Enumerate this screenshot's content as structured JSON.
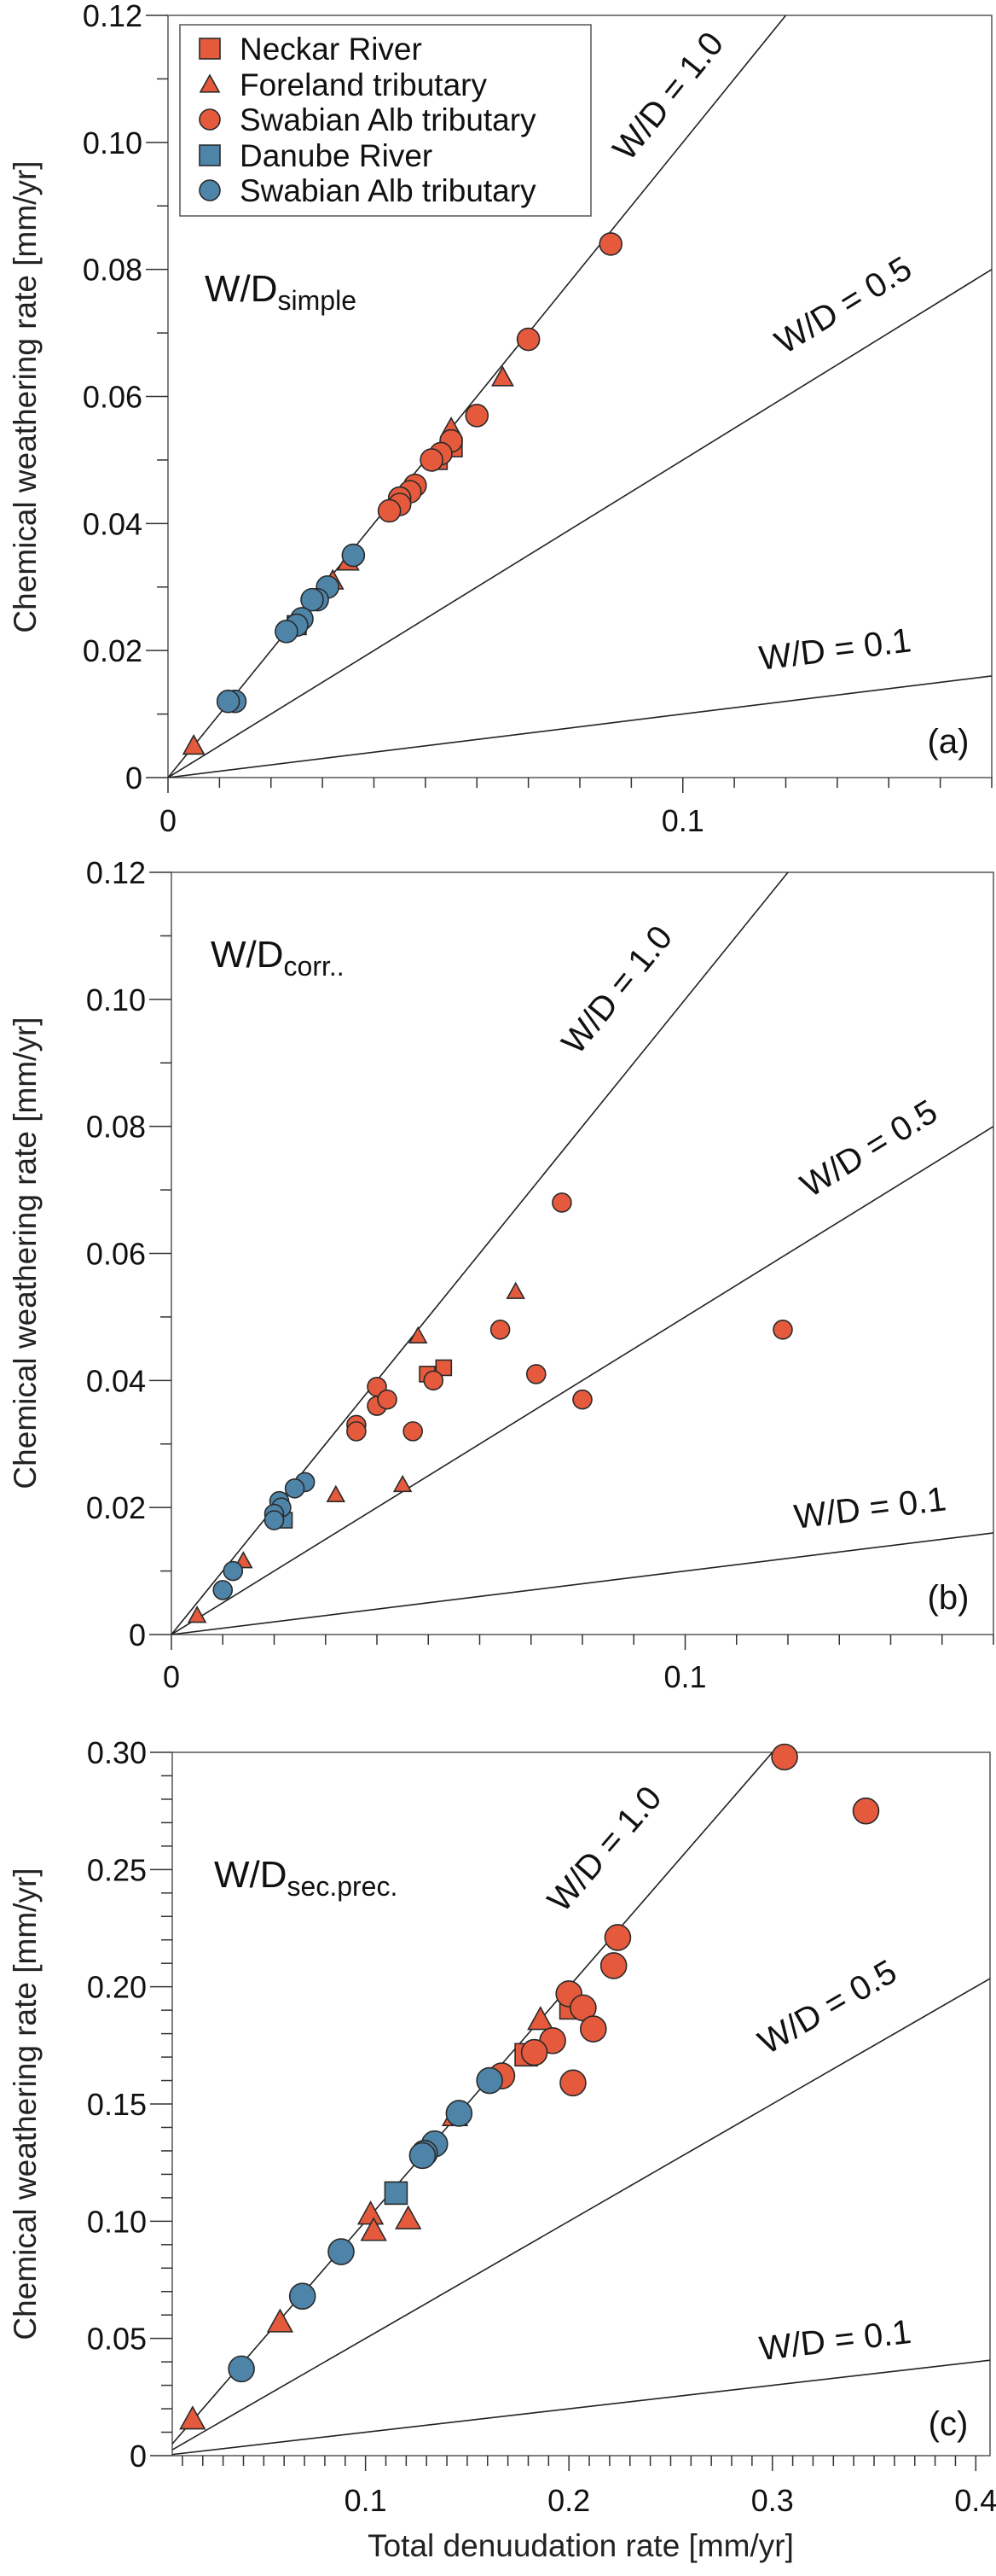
{
  "colors": {
    "orange": "#e55a3c",
    "blue": "#4e84a8",
    "stroke": "#2a2a2a"
  },
  "legend": {
    "placement": "top-left (panel a)",
    "entries": [
      {
        "label": "Neckar River",
        "marker": "square",
        "color": "#e55a3c"
      },
      {
        "label": "Foreland tributary",
        "marker": "triangle",
        "color": "#e55a3c"
      },
      {
        "label": "Swabian Alb tributary",
        "marker": "circle",
        "color": "#e55a3c"
      },
      {
        "label": "Danube River",
        "marker": "square",
        "color": "#4e84a8"
      },
      {
        "label": "Swabian Alb tributary",
        "marker": "circle",
        "color": "#4e84a8"
      }
    ]
  },
  "chart_data": [
    {
      "type": "scatter",
      "panel": "(a)",
      "ratio_label": "W/D",
      "ratio_sub": "simple",
      "ylabel": "Chemical weathering rate [mm/yr]",
      "xlabel": "",
      "xlim": [
        0,
        0.16
      ],
      "ylim": [
        0,
        0.12
      ],
      "xticks": [
        "0",
        "0.1"
      ],
      "xtick_values": [
        0,
        0.1
      ],
      "yticks": [
        "0",
        "0.02",
        "0.04",
        "0.06",
        "0.08",
        "0.10",
        "0.12"
      ],
      "ytick_values": [
        0,
        0.02,
        0.04,
        0.06,
        0.08,
        0.1,
        0.12
      ],
      "reference_lines": [
        {
          "label": "W/D = 1.0",
          "slope": 1.0
        },
        {
          "label": "W/D = 0.5",
          "slope": 0.5
        },
        {
          "label": "W/D = 0.1",
          "slope": 0.1
        }
      ],
      "series": [
        {
          "legend_index": 1,
          "points": [
            [
              0.005,
              0.005
            ],
            [
              0.032,
              0.031
            ],
            [
              0.035,
              0.034
            ],
            [
              0.055,
              0.055
            ],
            [
              0.065,
              0.063
            ]
          ]
        },
        {
          "legend_index": 0,
          "points": [
            [
              0.0553,
              0.052
            ],
            [
              0.0524,
              0.05
            ]
          ]
        },
        {
          "legend_index": 2,
          "points": [
            [
              0.086,
              0.084
            ],
            [
              0.07,
              0.069
            ],
            [
              0.06,
              0.057
            ],
            [
              0.055,
              0.053
            ],
            [
              0.053,
              0.051
            ],
            [
              0.0512,
              0.05
            ],
            [
              0.048,
              0.046
            ],
            [
              0.047,
              0.045
            ],
            [
              0.045,
              0.044
            ],
            [
              0.045,
              0.043
            ],
            [
              0.043,
              0.042
            ]
          ]
        },
        {
          "legend_index": 3,
          "points": [
            [
              0.025,
              0.024
            ]
          ]
        },
        {
          "legend_index": 4,
          "points": [
            [
              0.036,
              0.035
            ],
            [
              0.031,
              0.03
            ],
            [
              0.029,
              0.028
            ],
            [
              0.028,
              0.028
            ],
            [
              0.026,
              0.025
            ],
            [
              0.025,
              0.024
            ],
            [
              0.023,
              0.023
            ],
            [
              0.013,
              0.012
            ],
            [
              0.0117,
              0.012
            ]
          ]
        }
      ]
    },
    {
      "type": "scatter",
      "panel": "(b)",
      "ratio_label": "W/D",
      "ratio_sub": "corr..",
      "ylabel": "Chemical weathering rate [mm/yr]",
      "xlabel": "",
      "xlim": [
        0,
        0.16
      ],
      "ylim": [
        0,
        0.12
      ],
      "xticks": [
        "0",
        "0.1"
      ],
      "xtick_values": [
        0,
        0.1
      ],
      "yticks": [
        "0",
        "0.02",
        "0.04",
        "0.06",
        "0.08",
        "0.10",
        "0.12"
      ],
      "ytick_values": [
        0,
        0.02,
        0.04,
        0.06,
        0.08,
        0.1,
        0.12
      ],
      "reference_lines": [
        {
          "label": "W/D = 1.0",
          "slope": 1.0
        },
        {
          "label": "W/D = 0.5",
          "slope": 0.5
        },
        {
          "label": "W/D = 0.1",
          "slope": 0.1
        }
      ],
      "series": [
        {
          "legend_index": 1,
          "points": [
            [
              0.005,
              0.003
            ],
            [
              0.014,
              0.0116
            ],
            [
              0.032,
              0.022
            ],
            [
              0.036,
              0.033
            ],
            [
              0.045,
              0.0236
            ],
            [
              0.048,
              0.047
            ],
            [
              0.067,
              0.054
            ]
          ]
        },
        {
          "legend_index": 0,
          "points": [
            [
              0.0498,
              0.041
            ],
            [
              0.053,
              0.042
            ]
          ]
        },
        {
          "legend_index": 2,
          "points": [
            [
              0.076,
              0.068
            ],
            [
              0.064,
              0.048
            ],
            [
              0.119,
              0.048
            ],
            [
              0.071,
              0.041
            ],
            [
              0.08,
              0.037
            ],
            [
              0.051,
              0.04
            ],
            [
              0.04,
              0.039
            ],
            [
              0.04,
              0.036
            ],
            [
              0.042,
              0.037
            ],
            [
              0.036,
              0.033
            ],
            [
              0.036,
              0.032
            ],
            [
              0.047,
              0.032
            ]
          ]
        },
        {
          "legend_index": 3,
          "points": [
            [
              0.022,
              0.018
            ]
          ]
        },
        {
          "legend_index": 4,
          "points": [
            [
              0.026,
              0.024
            ],
            [
              0.024,
              0.023
            ],
            [
              0.021,
              0.021
            ],
            [
              0.0214,
              0.02
            ],
            [
              0.02,
              0.019
            ],
            [
              0.02,
              0.018
            ],
            [
              0.012,
              0.01
            ],
            [
              0.01,
              0.007
            ]
          ]
        }
      ]
    },
    {
      "type": "scatter",
      "panel": "(c)",
      "ratio_label": "W/D",
      "ratio_sub": "sec.prec.",
      "ylabel": "Chemical weathering rate [mm/yr]",
      "xlabel": "Total denuudation rate [mm/yr]",
      "xlim": [
        0.005,
        0.407
      ],
      "ylim": [
        0,
        0.3
      ],
      "xticks": [
        "0.1",
        "0.2",
        "0.3",
        "0.4"
      ],
      "xtick_values": [
        0.1,
        0.2,
        0.3,
        0.4
      ],
      "yticks": [
        "0",
        "0.05",
        "0.10",
        "0.15",
        "0.20",
        "0.25",
        "0.30"
      ],
      "ytick_values": [
        0,
        0.05,
        0.1,
        0.15,
        0.2,
        0.25,
        0.3
      ],
      "reference_lines": [
        {
          "label": "W/D = 1.0",
          "slope": 1.0
        },
        {
          "label": "W/D = 0.5",
          "slope": 0.5
        },
        {
          "label": "W/D = 0.1",
          "slope": 0.1
        }
      ],
      "series": [
        {
          "legend_index": 1,
          "points": [
            [
              0.015,
              0.0156
            ],
            [
              0.058,
              0.057
            ],
            [
              0.1025,
              0.103
            ],
            [
              0.104,
              0.096
            ],
            [
              0.121,
              0.101
            ],
            [
              0.144,
              0.145
            ],
            [
              0.186,
              0.186
            ]
          ]
        },
        {
          "legend_index": 0,
          "points": [
            [
              0.179,
              0.171
            ],
            [
              0.201,
              0.191
            ]
          ]
        },
        {
          "legend_index": 2,
          "points": [
            [
              0.306,
              0.298
            ],
            [
              0.346,
              0.275
            ],
            [
              0.224,
              0.221
            ],
            [
              0.222,
              0.209
            ],
            [
              0.2,
              0.197
            ],
            [
              0.207,
              0.191
            ],
            [
              0.212,
              0.182
            ],
            [
              0.192,
              0.177
            ],
            [
              0.183,
              0.172
            ],
            [
              0.167,
              0.162
            ],
            [
              0.202,
              0.159
            ]
          ]
        },
        {
          "legend_index": 3,
          "points": [
            [
              0.115,
              0.112
            ]
          ]
        },
        {
          "legend_index": 4,
          "points": [
            [
              0.161,
              0.16
            ],
            [
              0.146,
              0.146
            ],
            [
              0.134,
              0.133
            ],
            [
              0.129,
              0.129
            ],
            [
              0.128,
              0.128
            ],
            [
              0.088,
              0.087
            ],
            [
              0.069,
              0.068
            ],
            [
              0.039,
              0.037
            ]
          ]
        }
      ]
    }
  ]
}
